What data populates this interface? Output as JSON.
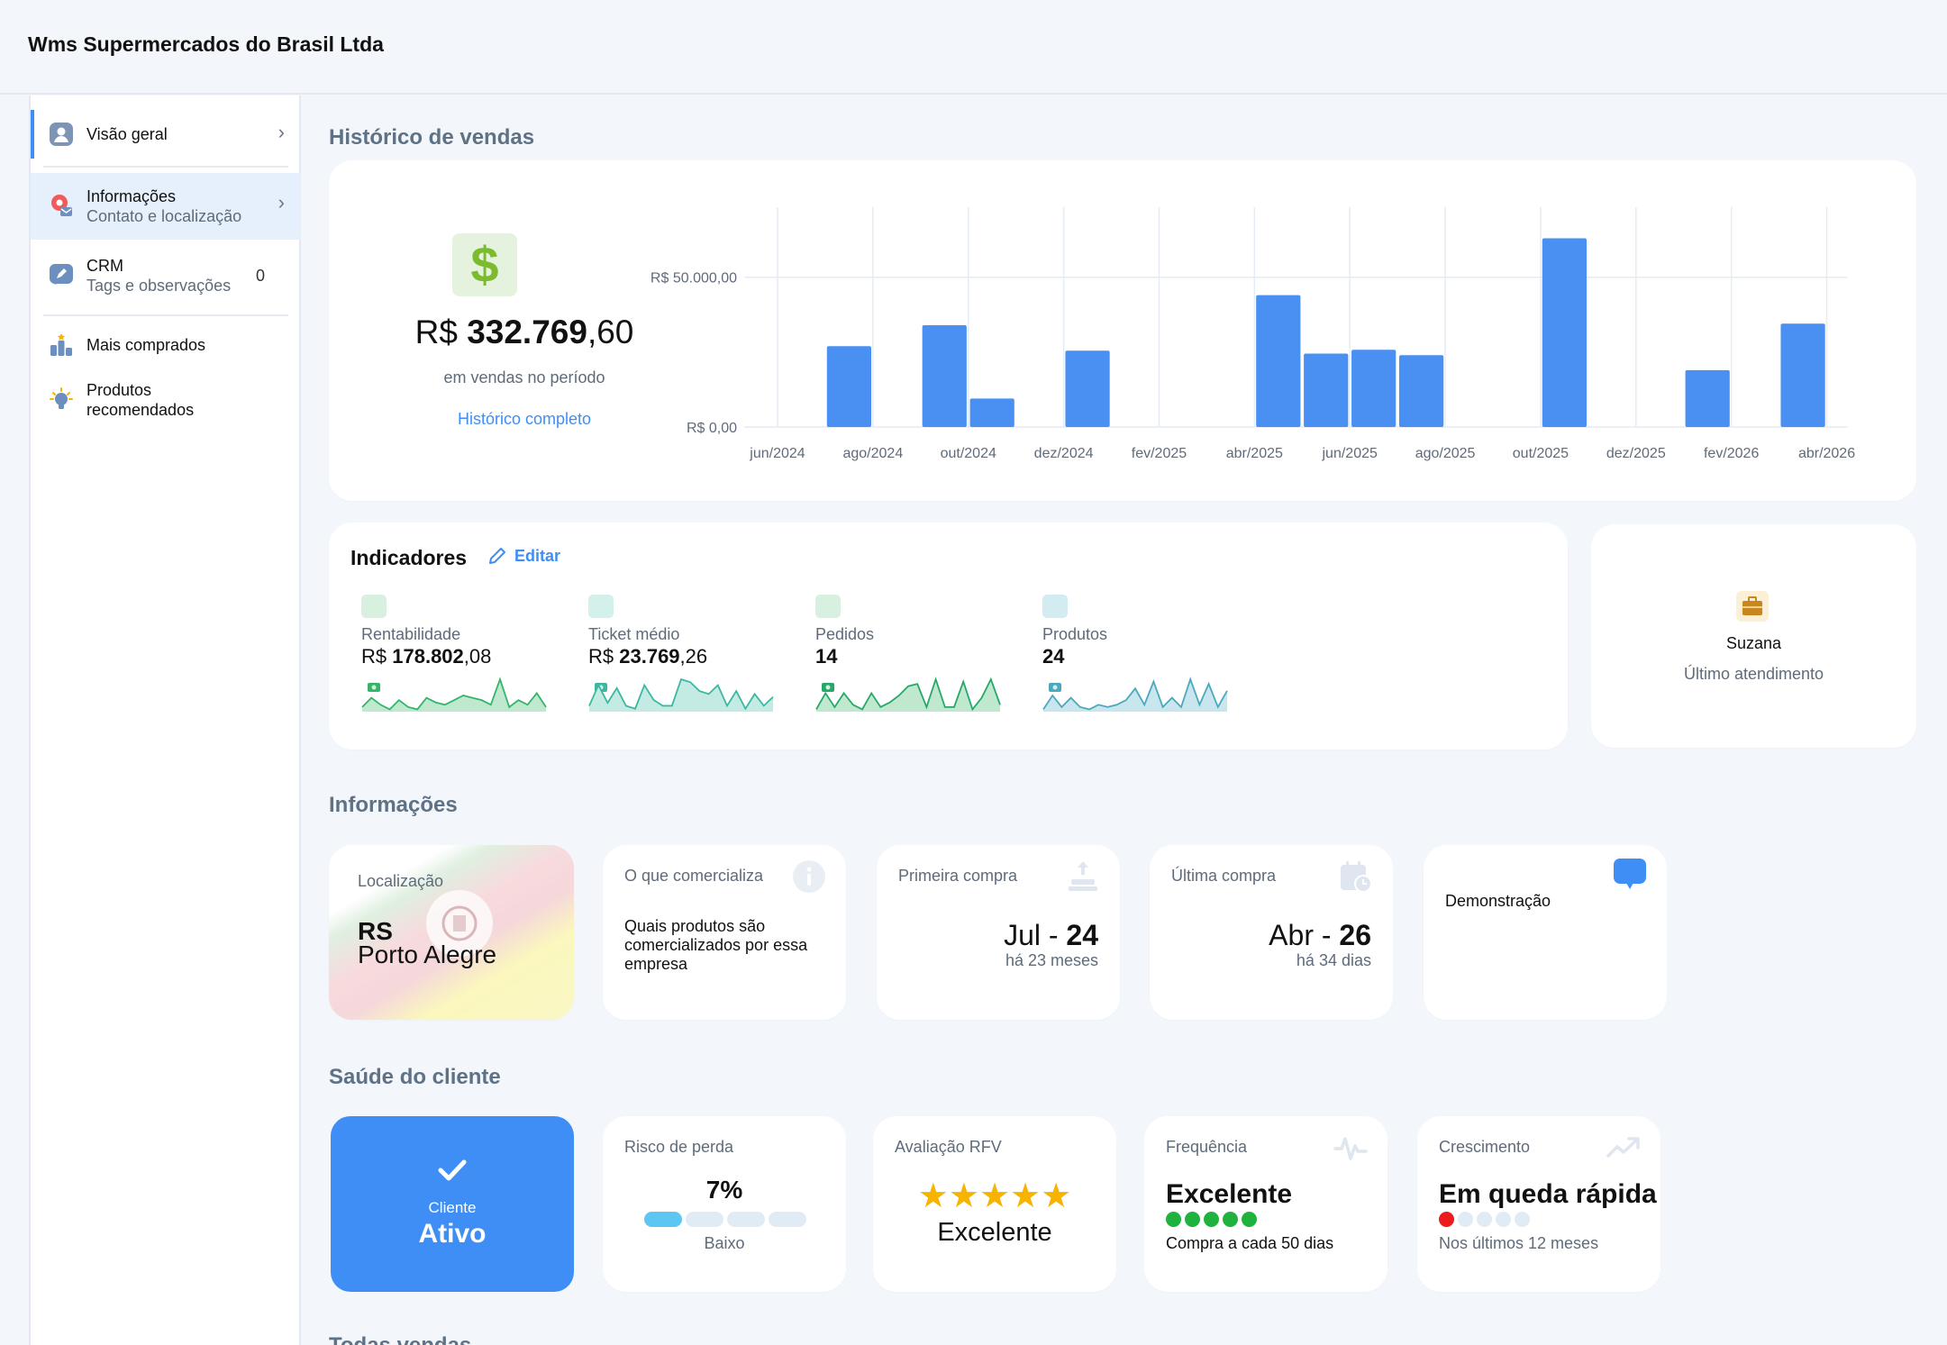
{
  "header": {
    "company": "Wms Supermercados do Brasil Ltda"
  },
  "sidebar": {
    "items": [
      {
        "label": "Visão geral",
        "sub": ""
      },
      {
        "label": "Informações",
        "sub": "Contato e localização"
      },
      {
        "label": "CRM",
        "sub": "Tags e observações",
        "count": "0"
      },
      {
        "label": "Mais comprados",
        "sub": ""
      },
      {
        "label": "Produtos",
        "sub": "recomendados"
      }
    ]
  },
  "sales_history": {
    "title": "Histórico de vendas",
    "total_prefix": "R$",
    "total_int": "332.769",
    "total_dec": ",60",
    "caption": "em vendas no período",
    "link": "Histórico completo",
    "y_ticks": [
      "R$ 50.000,00",
      "R$ 0,00"
    ],
    "x_ticks": [
      "jun/2024",
      "ago/2024",
      "out/2024",
      "dez/2024",
      "fev/2025",
      "abr/2025",
      "jun/2025",
      "ago/2025",
      "out/2025",
      "dez/2025",
      "fev/2026",
      "abr/2026"
    ]
  },
  "chart_data": {
    "type": "bar",
    "categories": [
      "jun/2024",
      "jul/2024",
      "ago/2024",
      "set/2024",
      "out/2024",
      "nov/2024",
      "dez/2024",
      "jan/2025",
      "fev/2025",
      "mar/2025",
      "abr/2025",
      "mai/2025",
      "jun/2025",
      "jul/2025",
      "ago/2025",
      "set/2025",
      "out/2025",
      "nov/2025",
      "dez/2025",
      "jan/2026",
      "fev/2026",
      "mar/2026",
      "abr/2026"
    ],
    "values": [
      0,
      27000,
      0,
      34000,
      9500,
      0,
      25500,
      0,
      0,
      0,
      44000,
      24500,
      25800,
      24000,
      0,
      0,
      63000,
      0,
      0,
      19000,
      0,
      34500,
      0
    ],
    "ylim": [
      0,
      83000
    ],
    "y_tick_values": [
      0,
      50000
    ],
    "grid": true
  },
  "indicators": {
    "title": "Indicadores",
    "edit": "Editar",
    "metrics": [
      {
        "label": "Rentabilidade",
        "prefix": "R$ ",
        "int": "178.802",
        "dec": ",08",
        "color": "#35b56a",
        "fill": "#bfe8cf",
        "icon_bg": "#d8f0e0",
        "series": [
          2,
          6,
          3,
          1,
          5,
          2,
          1,
          6,
          4,
          3,
          5,
          7,
          6,
          5,
          3,
          14,
          2,
          5,
          3,
          8,
          2
        ]
      },
      {
        "label": "Ticket médio",
        "prefix": "R$ ",
        "int": "23.769",
        "dec": ",26",
        "color": "#3cb8a2",
        "fill": "#c4ebe3",
        "icon_bg": "#d3f1ea",
        "series": [
          2,
          9,
          3,
          8,
          2,
          1,
          9,
          4,
          2,
          2,
          11,
          10,
          7,
          6,
          9,
          2,
          7,
          1,
          6,
          2,
          5
        ]
      },
      {
        "label": "Pedidos",
        "prefix": "",
        "int": "14",
        "dec": "",
        "color": "#26a86b",
        "fill": "#bfe8cf",
        "icon_bg": "#d8f0e0",
        "series": [
          1,
          8,
          2,
          8,
          3,
          1,
          8,
          2,
          4,
          7,
          11,
          12,
          2,
          14,
          2,
          2,
          13,
          1,
          6,
          14,
          3
        ]
      },
      {
        "label": "Produtos",
        "prefix": "",
        "int": "24",
        "dec": "",
        "color": "#4aa9bd",
        "fill": "#c9e6ee",
        "icon_bg": "#d3ecf2",
        "series": [
          1,
          7,
          2,
          6,
          2,
          1,
          3,
          2,
          3,
          5,
          10,
          3,
          13,
          2,
          6,
          2,
          14,
          3,
          12,
          2,
          9
        ]
      }
    ]
  },
  "attendance": {
    "name": "Suzana",
    "caption": "Último atendimento"
  },
  "informations": {
    "title": "Informações",
    "location": {
      "label": "Localização",
      "state": "RS",
      "city": "Porto Alegre"
    },
    "commercializes": {
      "label": "O que comercializa",
      "text": "Quais produtos são comercializados por essa empresa"
    },
    "first_purchase": {
      "label": "Primeira compra",
      "month": "Jul",
      "sep": " - ",
      "day": "24",
      "ago": "há 23 meses"
    },
    "last_purchase": {
      "label": "Última compra",
      "month": "Abr",
      "sep": " - ",
      "day": "26",
      "ago": "há 34 dias"
    },
    "demo": {
      "label": "Demonstração"
    }
  },
  "health": {
    "title": "Saúde do cliente",
    "status": {
      "label": "Cliente",
      "value": "Ativo"
    },
    "risk": {
      "label": "Risco de perda",
      "value": "7%",
      "level": 1,
      "levels": 4,
      "caption": "Baixo"
    },
    "rfv": {
      "label": "Avaliação RFV",
      "stars": 5,
      "max_stars": 5,
      "caption": "Excelente"
    },
    "frequency": {
      "label": "Frequência",
      "value": "Excelente",
      "dots": 5,
      "caption": "Compra a cada 50 dias"
    },
    "growth": {
      "label": "Crescimento",
      "value": "Em queda rápida",
      "dots": 1,
      "caption": "Nos últimos 12 meses"
    }
  },
  "bottom": {
    "title": "Todas vendas"
  },
  "colors": {
    "accent": "#3f8ef5",
    "bar": "#4a90f2"
  }
}
